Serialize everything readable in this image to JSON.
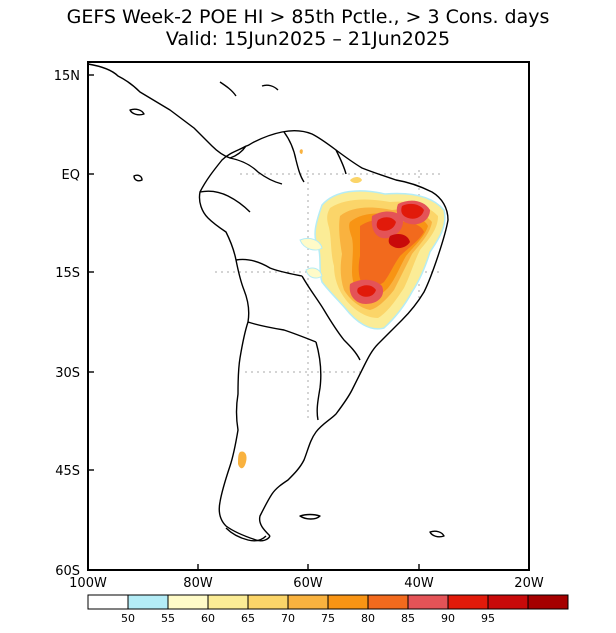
{
  "title": {
    "line1": "GEFS Week-2 POE HI > 85th Pctle., > 3 Cons. days",
    "line2": "Valid: 15Jun2025 – 21Jun2025"
  },
  "axes": {
    "y_ticks": [
      "15N",
      "EQ",
      "15S",
      "30S",
      "45S",
      "60S"
    ],
    "x_ticks": [
      "100W",
      "80W",
      "60W",
      "40W",
      "20W"
    ],
    "lat_range": [
      15,
      -60
    ],
    "lon_range": [
      -100,
      -20
    ]
  },
  "colorbar": {
    "labels": [
      "50",
      "55",
      "60",
      "65",
      "70",
      "75",
      "80",
      "85",
      "90",
      "95"
    ],
    "colors": [
      "#ffffff",
      "#b4ecf6",
      "#fffbc8",
      "#fbec96",
      "#fbd569",
      "#f9b23f",
      "#f89414",
      "#f26a1d",
      "#e45357",
      "#e11a0a",
      "#c80a0a",
      "#a50000"
    ]
  }
}
